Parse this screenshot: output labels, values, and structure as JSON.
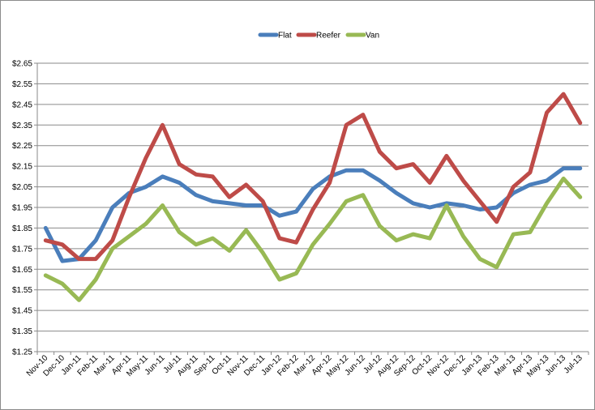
{
  "chart_data": {
    "type": "line",
    "title": "",
    "xlabel": "",
    "ylabel": "",
    "ylim": [
      1.25,
      2.65
    ],
    "yticks": [
      "$2.65",
      "$2.55",
      "$2.45",
      "$2.35",
      "$2.25",
      "$2.15",
      "$2.05",
      "$1.95",
      "$1.85",
      "$1.75",
      "$1.65",
      "$1.55",
      "$1.45",
      "$1.35",
      "$1.25"
    ],
    "grid": "horizontal",
    "legend_position": "top",
    "categories": [
      "Nov-10",
      "Dec-10",
      "Jan-11",
      "Feb-11",
      "Mar-11",
      "Apr-11",
      "May-11",
      "Jun-11",
      "Jul-11",
      "Aug-11",
      "Sep-11",
      "Oct-11",
      "Nov-11",
      "Dec-11",
      "Jan-12",
      "Feb-12",
      "Mar-12",
      "Apr-12",
      "May-12",
      "Jun-12",
      "Jul-12",
      "Aug-12",
      "Sep-12",
      "Oct-12",
      "Nov-12",
      "Dec-12",
      "Jan-13",
      "Feb-13",
      "Mar-13",
      "Apr-13",
      "May-13",
      "Jun-13",
      "Jul-13"
    ],
    "series": [
      {
        "name": "Flat",
        "color": "#4a7ebb",
        "values": [
          1.85,
          1.69,
          1.7,
          1.79,
          1.95,
          2.02,
          2.05,
          2.1,
          2.07,
          2.01,
          1.98,
          1.97,
          1.96,
          1.96,
          1.91,
          1.93,
          2.04,
          2.1,
          2.13,
          2.13,
          2.08,
          2.02,
          1.97,
          1.95,
          1.97,
          1.96,
          1.94,
          1.95,
          2.02,
          2.06,
          2.08,
          2.14,
          2.14
        ]
      },
      {
        "name": "Reefer",
        "color": "#be4b48",
        "values": [
          1.79,
          1.77,
          1.7,
          1.7,
          1.79,
          2.0,
          2.19,
          2.35,
          2.16,
          2.11,
          2.1,
          2.0,
          2.06,
          1.98,
          1.8,
          1.78,
          1.94,
          2.07,
          2.35,
          2.4,
          2.22,
          2.14,
          2.16,
          2.07,
          2.2,
          2.08,
          1.98,
          1.88,
          2.05,
          2.12,
          2.41,
          2.5,
          2.36
        ]
      },
      {
        "name": "Van",
        "color": "#98b954",
        "values": [
          1.62,
          1.58,
          1.5,
          1.6,
          1.75,
          1.81,
          1.87,
          1.96,
          1.83,
          1.77,
          1.8,
          1.74,
          1.84,
          1.73,
          1.6,
          1.63,
          1.77,
          1.87,
          1.98,
          2.01,
          1.86,
          1.79,
          1.82,
          1.8,
          1.96,
          1.81,
          1.7,
          1.66,
          1.82,
          1.83,
          1.97,
          2.09,
          2.0
        ]
      }
    ]
  }
}
